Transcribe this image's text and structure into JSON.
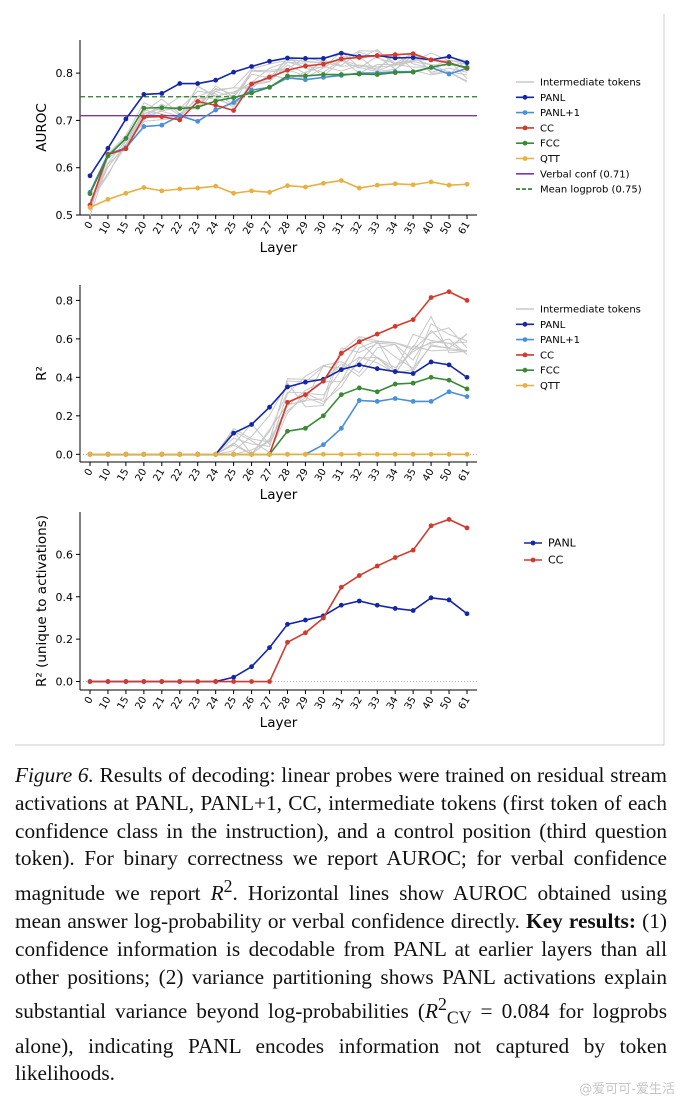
{
  "chart_data": [
    {
      "type": "line",
      "ylabel": "AUROC",
      "xlabel": "Layer",
      "categories": [
        "0",
        "10",
        "15",
        "20",
        "21",
        "22",
        "23",
        "24",
        "25",
        "26",
        "27",
        "28",
        "29",
        "30",
        "31",
        "32",
        "33",
        "34",
        "35",
        "40",
        "50",
        "61"
      ],
      "ylim": [
        0.5,
        0.87
      ],
      "yticks": [
        "0.5",
        "0.6",
        "0.7",
        "0.8"
      ],
      "series": [
        {
          "name": "PANL",
          "color": "#1426a8",
          "values": [
            0.583,
            0.641,
            0.703,
            0.755,
            0.757,
            0.778,
            0.778,
            0.785,
            0.802,
            0.814,
            0.825,
            0.832,
            0.831,
            0.831,
            0.842,
            0.835,
            0.837,
            0.832,
            0.833,
            0.828,
            0.835,
            0.822
          ]
        },
        {
          "name": "PANL+1",
          "color": "#4a90d9",
          "values": [
            0.548,
            0.629,
            0.642,
            0.687,
            0.69,
            0.71,
            0.698,
            0.722,
            0.738,
            0.764,
            0.77,
            0.79,
            0.786,
            0.791,
            0.795,
            0.8,
            0.8,
            0.803,
            0.803,
            0.812,
            0.798,
            0.81
          ]
        },
        {
          "name": "CC",
          "color": "#d23a2e",
          "values": [
            0.521,
            0.628,
            0.64,
            0.707,
            0.708,
            0.701,
            0.74,
            0.732,
            0.721,
            0.777,
            0.791,
            0.806,
            0.815,
            0.819,
            0.83,
            0.833,
            0.837,
            0.839,
            0.841,
            0.828,
            0.822,
            0.81
          ]
        },
        {
          "name": "FCC",
          "color": "#3a8a35",
          "values": [
            0.545,
            0.625,
            0.662,
            0.726,
            0.727,
            0.725,
            0.728,
            0.741,
            0.748,
            0.758,
            0.77,
            0.794,
            0.794,
            0.797,
            0.797,
            0.798,
            0.797,
            0.801,
            0.802,
            0.812,
            0.82,
            0.812
          ]
        },
        {
          "name": "QTT",
          "color": "#e8b040",
          "values": [
            0.516,
            0.533,
            0.546,
            0.558,
            0.551,
            0.555,
            0.557,
            0.561,
            0.546,
            0.551,
            0.548,
            0.562,
            0.559,
            0.567,
            0.573,
            0.557,
            0.563,
            0.566,
            0.564,
            0.57,
            0.563,
            0.565
          ]
        }
      ],
      "hlines": [
        {
          "name": "Verbal conf (0.71)",
          "value": 0.71,
          "color": "#7a3aa0",
          "style": "solid"
        },
        {
          "name": "Mean logprob (0.75)",
          "value": 0.75,
          "color": "#2a7a2a",
          "style": "dashed"
        }
      ],
      "intermediate_label": "Intermediate tokens",
      "legend_items": [
        "Intermediate tokens",
        "PANL",
        "PANL+1",
        "CC",
        "FCC",
        "QTT",
        "Verbal conf (0.71)",
        "Mean logprob (0.75)"
      ]
    },
    {
      "type": "line",
      "ylabel": "R²",
      "xlabel": "Layer",
      "categories": [
        "0",
        "10",
        "15",
        "20",
        "21",
        "22",
        "23",
        "24",
        "25",
        "26",
        "27",
        "28",
        "29",
        "30",
        "31",
        "32",
        "33",
        "34",
        "35",
        "40",
        "50",
        "61"
      ],
      "ylim": [
        -0.04,
        0.88
      ],
      "yticks": [
        "0.0",
        "0.2",
        "0.4",
        "0.6",
        "0.8"
      ],
      "series": [
        {
          "name": "PANL",
          "color": "#1426a8",
          "values": [
            0,
            0,
            0,
            0,
            0,
            0,
            0,
            0,
            0.11,
            0.155,
            0.245,
            0.35,
            0.375,
            0.39,
            0.44,
            0.465,
            0.445,
            0.43,
            0.42,
            0.48,
            0.465,
            0.4
          ]
        },
        {
          "name": "PANL+1",
          "color": "#4a90d9",
          "values": [
            0,
            0,
            0,
            0,
            0,
            0,
            0,
            0,
            0,
            0,
            0,
            0,
            0,
            0.05,
            0.135,
            0.28,
            0.275,
            0.29,
            0.275,
            0.275,
            0.325,
            0.3
          ]
        },
        {
          "name": "CC",
          "color": "#d23a2e",
          "values": [
            0,
            0,
            0,
            0,
            0,
            0,
            0,
            0,
            0,
            0,
            0,
            0.27,
            0.31,
            0.38,
            0.525,
            0.585,
            0.625,
            0.665,
            0.7,
            0.815,
            0.845,
            0.8
          ]
        },
        {
          "name": "FCC",
          "color": "#3a8a35",
          "values": [
            0,
            0,
            0,
            0,
            0,
            0,
            0,
            0,
            0,
            0,
            0,
            0.12,
            0.135,
            0.2,
            0.31,
            0.345,
            0.325,
            0.365,
            0.37,
            0.4,
            0.385,
            0.34
          ]
        },
        {
          "name": "QTT",
          "color": "#e8b040",
          "values": [
            0,
            0,
            0,
            0,
            0,
            0,
            0,
            0,
            0,
            0,
            0,
            0,
            0,
            0,
            0,
            0,
            0,
            0,
            0,
            0,
            0,
            0
          ]
        }
      ],
      "intermediate_label": "Intermediate tokens",
      "legend_items": [
        "Intermediate tokens",
        "PANL",
        "PANL+1",
        "CC",
        "FCC",
        "QTT"
      ]
    },
    {
      "type": "line",
      "ylabel": "R² (unique to activations)",
      "xlabel": "Layer",
      "categories": [
        "0",
        "10",
        "15",
        "20",
        "21",
        "22",
        "23",
        "24",
        "25",
        "26",
        "27",
        "28",
        "29",
        "30",
        "31",
        "32",
        "33",
        "34",
        "35",
        "40",
        "50",
        "61"
      ],
      "ylim": [
        -0.04,
        0.8
      ],
      "yticks": [
        "0.0",
        "0.2",
        "0.4",
        "0.6"
      ],
      "series": [
        {
          "name": "PANL",
          "color": "#1426a8",
          "values": [
            0,
            0,
            0,
            0,
            0,
            0,
            0,
            0,
            0.02,
            0.07,
            0.16,
            0.27,
            0.29,
            0.31,
            0.36,
            0.38,
            0.36,
            0.345,
            0.335,
            0.395,
            0.385,
            0.32
          ]
        },
        {
          "name": "CC",
          "color": "#d23a2e",
          "values": [
            0,
            0,
            0,
            0,
            0,
            0,
            0,
            0,
            0,
            0,
            0,
            0.185,
            0.23,
            0.3,
            0.445,
            0.5,
            0.545,
            0.585,
            0.62,
            0.735,
            0.765,
            0.725
          ]
        }
      ],
      "legend_items": [
        "PANL",
        "CC"
      ]
    }
  ],
  "caption": {
    "figure_label": "Figure 6.",
    "text_1": " Results of decoding: linear probes were trained on residual stream activations at PANL, PANL+1, CC, intermediate tokens (first token of each confidence class in the instruction), and a control position (third question token). For binary correctness we report AUROC; for verbal confidence magnitude we report ",
    "r2_symbol": "R",
    "r2_sup": "2",
    "text_2": ". Horizontal lines show AUROC obtained using mean answer log-probability or verbal confidence directly. ",
    "key_results": "Key results:",
    "text_3": " (1) confidence information is decodable from PANL at earlier layers than all other positions; (2) variance partitioning shows PANL activations explain substantial variance beyond log-probabilities (",
    "rcv_symbol": "R",
    "rcv_sup": "2",
    "rcv_sub": "CV",
    "text_4": " = 0.084 for logprobs alone), indicating PANL encodes information not captured by token likelihoods."
  },
  "watermark": "@爱可可-爱生活"
}
